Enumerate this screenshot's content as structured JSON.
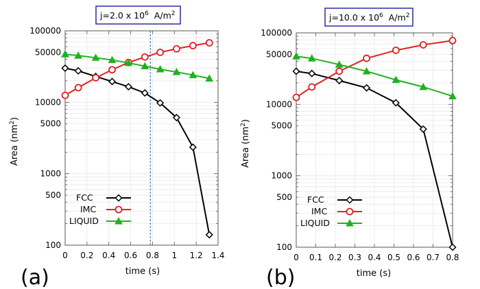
{
  "chart_data": [
    {
      "type": "line",
      "panel_label": "(a)",
      "title": "j=2.0 x 10^6 A/m^2",
      "title_parts": {
        "base": "j=2.0 x 10",
        "exp": "6",
        "unit": "A/m",
        "unit_exp": "2"
      },
      "xlabel": "time (s)",
      "ylabel": "Area (nm^2)",
      "ylabel_parts": {
        "base": "Area (nm",
        "exp": "2",
        "close": ")"
      },
      "xlim": [
        0,
        1.4
      ],
      "ylim": [
        100,
        100000
      ],
      "yscale": "log",
      "xticks": [
        "0",
        "0.2",
        "0.4",
        "0.6",
        "0.8",
        "1",
        "1.2",
        "1.4"
      ],
      "xtick_values": [
        0,
        0.2,
        0.4,
        0.6,
        0.8,
        1.0,
        1.2,
        1.4
      ],
      "yticks": [
        "100",
        "500",
        "1000",
        "5000",
        "10000",
        "50000",
        "100000"
      ],
      "ytick_values": [
        100,
        500,
        1000,
        5000,
        10000,
        50000,
        100000
      ],
      "grid": true,
      "vline_x": 0.78,
      "legend_position": "bottom-left",
      "series": [
        {
          "name": "FCC",
          "color": "#000000",
          "marker": "diamond",
          "x": [
            0,
            0.12,
            0.28,
            0.43,
            0.58,
            0.73,
            0.87,
            1.02,
            1.17,
            1.32
          ],
          "y": [
            30000,
            27500,
            23000,
            19500,
            16500,
            13500,
            9800,
            6100,
            2350,
            140
          ]
        },
        {
          "name": "IMC",
          "color": "#e02020",
          "marker": "circle",
          "x": [
            0,
            0.12,
            0.28,
            0.43,
            0.58,
            0.73,
            0.87,
            1.02,
            1.17,
            1.32
          ],
          "y": [
            12500,
            16000,
            22000,
            28500,
            36000,
            43000,
            50000,
            56000,
            62000,
            68000
          ]
        },
        {
          "name": "LIQUID",
          "color": "#20b020",
          "marker": "triangle",
          "x": [
            0,
            0.12,
            0.28,
            0.43,
            0.58,
            0.73,
            0.87,
            1.02,
            1.17,
            1.32
          ],
          "y": [
            47000,
            45000,
            42000,
            39000,
            35500,
            32000,
            29000,
            26500,
            24000,
            21500
          ]
        }
      ]
    },
    {
      "type": "line",
      "panel_label": "(b)",
      "title": "j=10.0 x 10^6 A/m^2",
      "title_parts": {
        "base": "j=10.0 x 10",
        "exp": "6",
        "unit": "A/m",
        "unit_exp": "2"
      },
      "xlabel": "time (s)",
      "ylabel": "Area (nm^2)",
      "ylabel_parts": {
        "base": "Area (nm",
        "exp": "2",
        "close": ")"
      },
      "xlim": [
        0,
        0.8
      ],
      "ylim": [
        100,
        100000
      ],
      "yscale": "log",
      "xticks": [
        "0",
        "0.1",
        "0.2",
        "0.3",
        "0.4",
        "0.5",
        "0.6",
        "0.7",
        "0.8"
      ],
      "xtick_values": [
        0,
        0.1,
        0.2,
        0.3,
        0.4,
        0.5,
        0.6,
        0.7,
        0.8
      ],
      "yticks": [
        "100",
        "500",
        "1000",
        "5000",
        "10000",
        "50000",
        "100000"
      ],
      "ytick_values": [
        100,
        500,
        1000,
        5000,
        10000,
        50000,
        100000
      ],
      "grid": true,
      "legend_position": "bottom-left",
      "series": [
        {
          "name": "FCC",
          "color": "#000000",
          "marker": "diamond",
          "x": [
            0,
            0.08,
            0.22,
            0.36,
            0.51,
            0.65,
            0.8
          ],
          "y": [
            29000,
            27000,
            21500,
            17000,
            10500,
            4500,
            100
          ]
        },
        {
          "name": "IMC",
          "color": "#e02020",
          "marker": "circle",
          "x": [
            0,
            0.08,
            0.22,
            0.36,
            0.51,
            0.65,
            0.8
          ],
          "y": [
            12500,
            17500,
            29000,
            44000,
            57000,
            68000,
            78000
          ]
        },
        {
          "name": "LIQUID",
          "color": "#20b020",
          "marker": "triangle",
          "x": [
            0,
            0.08,
            0.22,
            0.36,
            0.51,
            0.65,
            0.8
          ],
          "y": [
            47000,
            44000,
            36000,
            29000,
            22000,
            17500,
            13000
          ]
        }
      ]
    }
  ]
}
